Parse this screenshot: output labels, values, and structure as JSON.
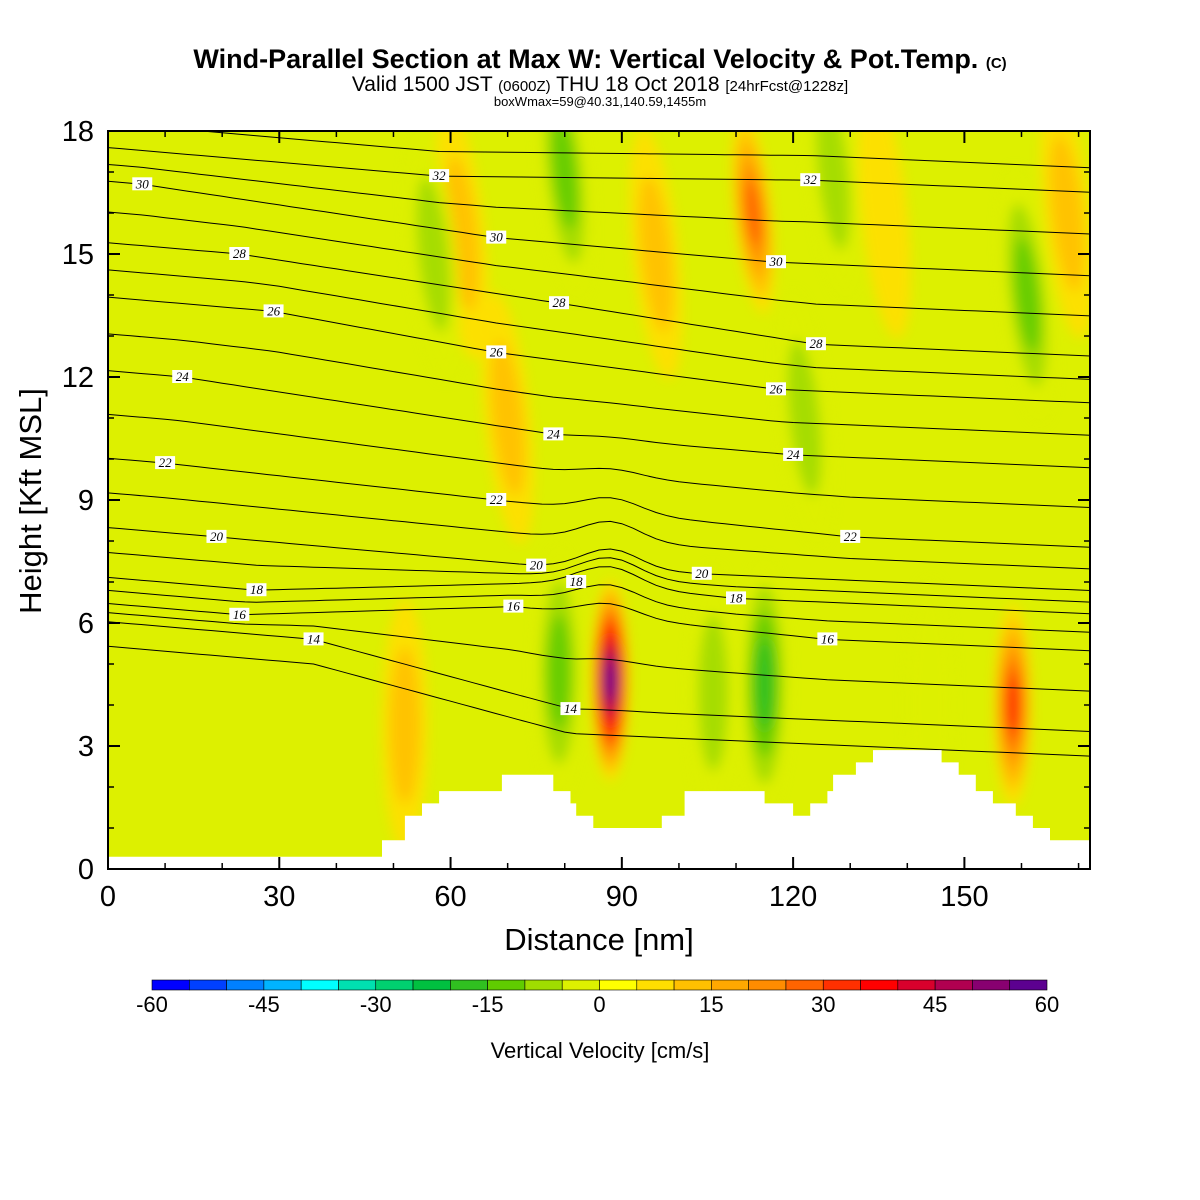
{
  "header": {
    "title": "Wind-Parallel Section at Max W: Vertical Velocity & Pot.Temp.",
    "title_mark": "(C)",
    "valid_a": "Valid 1500 JST",
    "valid_b": "(0600Z)",
    "valid_c": "THU 18 Oct 2018",
    "valid_d": "[24hrFcst@1228z]",
    "box_info": "boxWmax=59@40.31,140.59,1455m"
  },
  "chart_data": {
    "type": "heatmap",
    "xlabel": "Distance [nm]",
    "ylabel": "Height [Kft MSL]",
    "xlim": [
      0,
      172
    ],
    "ylim": [
      0,
      18
    ],
    "x_ticks": [
      0,
      30,
      60,
      90,
      120,
      150
    ],
    "y_ticks": [
      0,
      3,
      6,
      9,
      12,
      15,
      18
    ],
    "colorbar": {
      "label": "Vertical Velocity [cm/s]",
      "range": [
        -60,
        60
      ],
      "step": 5,
      "tick_labels": [
        -60,
        -45,
        -30,
        -15,
        0,
        15,
        30,
        45,
        60
      ],
      "colors": [
        "#0000ff",
        "#0040ff",
        "#0080ff",
        "#00b4ff",
        "#00ffff",
        "#00e0b0",
        "#00d070",
        "#00c040",
        "#30c020",
        "#60cc00",
        "#a0dc00",
        "#ddf000",
        "#ffff00",
        "#ffde00",
        "#ffc000",
        "#ffa800",
        "#ff8c00",
        "#ff6400",
        "#ff3000",
        "#ff0000",
        "#d8002c",
        "#b00050",
        "#880070",
        "#5c0090"
      ]
    },
    "w_features": [
      {
        "x": 88,
        "z": 4.6,
        "w": 59
      },
      {
        "x": 158.5,
        "z": 4.0,
        "w": 32
      },
      {
        "x": 113,
        "z": 16.0,
        "w": 28
      },
      {
        "x": 62,
        "z": 15.5,
        "w": 12
      },
      {
        "x": 70,
        "z": 11.0,
        "w": 10
      },
      {
        "x": 52,
        "z": 3.5,
        "w": 14
      },
      {
        "x": 168,
        "z": 16.0,
        "w": 14
      },
      {
        "x": 96,
        "z": 15.0,
        "w": 10
      },
      {
        "x": 136,
        "z": 16.0,
        "w": 6
      },
      {
        "x": 57,
        "z": 15.0,
        "w": -14
      },
      {
        "x": 80,
        "z": 17.0,
        "w": -16
      },
      {
        "x": 127,
        "z": 17.0,
        "w": -14
      },
      {
        "x": 122,
        "z": 11.0,
        "w": -14
      },
      {
        "x": 161,
        "z": 14.0,
        "w": -16
      },
      {
        "x": 115,
        "z": 4.5,
        "w": -20
      },
      {
        "x": 79,
        "z": 4.8,
        "w": -16
      },
      {
        "x": 106,
        "z": 4.3,
        "w": -12
      },
      {
        "x": 144,
        "z": 4.0,
        "w": -8
      }
    ],
    "terrain": [
      [
        0,
        0.3
      ],
      [
        48,
        0.3
      ],
      [
        48,
        0.7
      ],
      [
        52,
        0.7
      ],
      [
        52,
        1.3
      ],
      [
        55,
        1.3
      ],
      [
        55,
        1.6
      ],
      [
        58,
        1.6
      ],
      [
        58,
        1.9
      ],
      [
        69,
        1.9
      ],
      [
        69,
        2.3
      ],
      [
        78,
        2.3
      ],
      [
        78,
        1.9
      ],
      [
        81,
        1.9
      ],
      [
        81,
        1.6
      ],
      [
        82,
        1.6
      ],
      [
        82,
        1.3
      ],
      [
        85,
        1.3
      ],
      [
        85,
        1.0
      ],
      [
        97,
        1.0
      ],
      [
        97,
        1.3
      ],
      [
        101,
        1.3
      ],
      [
        101,
        1.9
      ],
      [
        115,
        1.9
      ],
      [
        115,
        1.6
      ],
      [
        120,
        1.6
      ],
      [
        120,
        1.3
      ],
      [
        123,
        1.3
      ],
      [
        123,
        1.6
      ],
      [
        126,
        1.6
      ],
      [
        126,
        1.9
      ],
      [
        127,
        1.9
      ],
      [
        127,
        2.3
      ],
      [
        131,
        2.3
      ],
      [
        131,
        2.6
      ],
      [
        134,
        2.6
      ],
      [
        134,
        2.9
      ],
      [
        146,
        2.9
      ],
      [
        146,
        2.6
      ],
      [
        149,
        2.6
      ],
      [
        149,
        2.3
      ],
      [
        152,
        2.3
      ],
      [
        152,
        1.9
      ],
      [
        155,
        1.9
      ],
      [
        155,
        1.6
      ],
      [
        159,
        1.6
      ],
      [
        159,
        1.3
      ],
      [
        162,
        1.3
      ],
      [
        162,
        1.0
      ],
      [
        165,
        1.0
      ],
      [
        165,
        0.7
      ],
      [
        172,
        0.7
      ]
    ],
    "isentropes": [
      {
        "theta": 14,
        "label_at": [
          36,
          5.6
        ]
      },
      {
        "theta": 14,
        "label_at": [
          81,
          3.9
        ]
      },
      {
        "theta": 16,
        "label_at": [
          23,
          6.2
        ]
      },
      {
        "theta": 16,
        "label_at": [
          71,
          6.4
        ]
      },
      {
        "theta": 16,
        "label_at": [
          126,
          5.6
        ]
      },
      {
        "theta": 18,
        "label_at": [
          26,
          6.8
        ]
      },
      {
        "theta": 18,
        "label_at": [
          82,
          7.0
        ]
      },
      {
        "theta": 18,
        "label_at": [
          110,
          6.6
        ]
      },
      {
        "theta": 20,
        "label_at": [
          19,
          8.1
        ]
      },
      {
        "theta": 20,
        "label_at": [
          75,
          7.4
        ]
      },
      {
        "theta": 20,
        "label_at": [
          104,
          7.2
        ]
      },
      {
        "theta": 22,
        "label_at": [
          10,
          9.9
        ]
      },
      {
        "theta": 22,
        "label_at": [
          68,
          9.0
        ]
      },
      {
        "theta": 22,
        "label_at": [
          130,
          8.1
        ]
      },
      {
        "theta": 24,
        "label_at": [
          13,
          12.0
        ]
      },
      {
        "theta": 24,
        "label_at": [
          78,
          10.6
        ]
      },
      {
        "theta": 24,
        "label_at": [
          120,
          10.1
        ]
      },
      {
        "theta": 26,
        "label_at": [
          29,
          13.6
        ]
      },
      {
        "theta": 26,
        "label_at": [
          68,
          12.6
        ]
      },
      {
        "theta": 26,
        "label_at": [
          117,
          11.7
        ]
      },
      {
        "theta": 28,
        "label_at": [
          23,
          15.0
        ]
      },
      {
        "theta": 28,
        "label_at": [
          79,
          13.8
        ]
      },
      {
        "theta": 28,
        "label_at": [
          124,
          12.8
        ]
      },
      {
        "theta": 30,
        "label_at": [
          6,
          16.7
        ]
      },
      {
        "theta": 30,
        "label_at": [
          68,
          15.4
        ]
      },
      {
        "theta": 30,
        "label_at": [
          117,
          14.8
        ]
      },
      {
        "theta": 32,
        "label_at": [
          58,
          16.9
        ]
      },
      {
        "theta": 32,
        "label_at": [
          123,
          16.8
        ]
      }
    ]
  }
}
